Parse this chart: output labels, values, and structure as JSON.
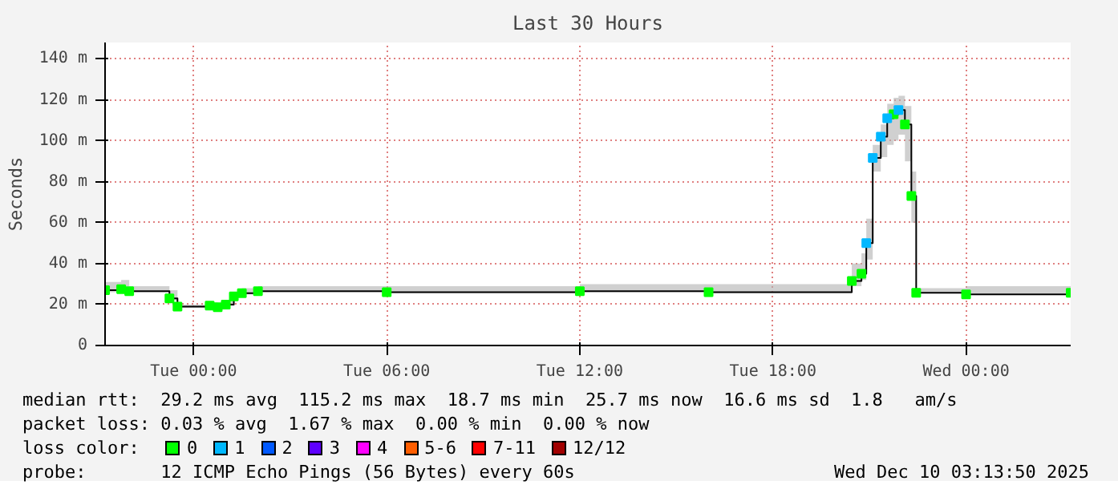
{
  "chart_data": {
    "type": "step",
    "title": "Last 30 Hours",
    "ylabel": "Seconds",
    "x": [
      "2025-12-08T21:15",
      "2025-12-08T21:45",
      "2025-12-08T22:00",
      "2025-12-08T23:15",
      "2025-12-08T23:30",
      "2025-12-09T00:30",
      "2025-12-09T00:45",
      "2025-12-09T01:00",
      "2025-12-09T01:15",
      "2025-12-09T01:30",
      "2025-12-09T02:00",
      "2025-12-09T06:00",
      "2025-12-09T12:00",
      "2025-12-09T16:00",
      "2025-12-09T20:27",
      "2025-12-09T20:45",
      "2025-12-09T20:54",
      "2025-12-09T21:06",
      "2025-12-09T21:21",
      "2025-12-09T21:33",
      "2025-12-09T21:45",
      "2025-12-09T21:54",
      "2025-12-09T22:06",
      "2025-12-09T22:18",
      "2025-12-09T22:27",
      "2025-12-10T00:00",
      "2025-12-10T03:15"
    ],
    "series": [
      {
        "color": "#000000",
        "marker": "none",
        "values": [
          27,
          27.5,
          26.5,
          23,
          19,
          19.5,
          18.7,
          20,
          24,
          25.5,
          26.5,
          26,
          26.5,
          26,
          31.5,
          35,
          50,
          91.6,
          102,
          111,
          113,
          115,
          108,
          73,
          25.7,
          25,
          25.7
        ],
        "lower": [
          26,
          26.5,
          26,
          22,
          18.5,
          19,
          18.5,
          19.5,
          23.5,
          25,
          26,
          25.5,
          26,
          25.5,
          29,
          32,
          42,
          85,
          92,
          98,
          100,
          103,
          90,
          60,
          25.5,
          25,
          25.5
        ],
        "upper": [
          31,
          32,
          29,
          27,
          20,
          21,
          20,
          22,
          26,
          28,
          29,
          29,
          30,
          30,
          40,
          45,
          62,
          98,
          108,
          118,
          121,
          122,
          117,
          85,
          28,
          29,
          28
        ]
      },
      {
        "type": "scatter",
        "name": "0",
        "color": "#00ff00",
        "values": [
          27,
          27.5,
          26.5,
          23,
          19,
          19.5,
          18.7,
          20,
          24,
          25.5,
          26.5,
          26,
          26.5,
          26,
          31.5,
          35,
          null,
          null,
          null,
          null,
          113,
          null,
          108,
          73,
          25.7,
          25,
          25.7
        ]
      },
      {
        "type": "scatter",
        "name": "1",
        "color": "#00b8ff",
        "values": [
          null,
          null,
          null,
          null,
          null,
          null,
          null,
          null,
          null,
          null,
          null,
          null,
          null,
          null,
          null,
          null,
          50,
          91.6,
          102,
          111,
          null,
          115,
          null,
          null,
          null,
          null,
          null
        ]
      },
      {
        "type": "scatter",
        "name": "2",
        "color": "#0059ff",
        "values": [
          null,
          null,
          null,
          null,
          null,
          null,
          null,
          null,
          null,
          null,
          null,
          null,
          null,
          null,
          null,
          null,
          null,
          null,
          null,
          null,
          null,
          null,
          null,
          null,
          null,
          null,
          null
        ]
      },
      {
        "type": "scatter",
        "name": "3",
        "color": "#5e00ff",
        "values": [
          null,
          null,
          null,
          null,
          null,
          null,
          null,
          null,
          null,
          null,
          null,
          null,
          null,
          null,
          null,
          null,
          null,
          null,
          null,
          null,
          null,
          null,
          null,
          null,
          null,
          null,
          null
        ]
      },
      {
        "type": "scatter",
        "name": "4",
        "color": "#ff00ff",
        "values": [
          null,
          null,
          null,
          null,
          null,
          null,
          null,
          null,
          null,
          null,
          null,
          null,
          null,
          null,
          null,
          null,
          null,
          null,
          null,
          null,
          null,
          null,
          null,
          null,
          null,
          null,
          null
        ]
      },
      {
        "type": "scatter",
        "name": "5-6",
        "color": "#ff5e00",
        "values": [
          null,
          null,
          null,
          null,
          null,
          null,
          null,
          null,
          null,
          null,
          null,
          null,
          null,
          null,
          null,
          null,
          null,
          null,
          null,
          null,
          null,
          null,
          null,
          null,
          null,
          null,
          null
        ]
      },
      {
        "type": "scatter",
        "name": "7-11",
        "color": "#ff0000",
        "values": [
          null,
          null,
          null,
          null,
          null,
          null,
          null,
          null,
          null,
          null,
          null,
          null,
          null,
          null,
          null,
          null,
          null,
          null,
          null,
          null,
          null,
          null,
          null,
          null,
          null,
          null,
          null
        ]
      },
      {
        "type": "scatter",
        "name": "12/12",
        "color": "#a10000",
        "values": [
          null,
          null,
          null,
          null,
          null,
          null,
          null,
          null,
          null,
          null,
          null,
          null,
          null,
          null,
          null,
          null,
          null,
          null,
          null,
          null,
          null,
          null,
          null,
          null,
          null,
          null,
          null
        ]
      }
    ],
    "marker": "square",
    "legend": "bottom",
    "legend_title": "loss color:",
    "grid": true,
    "xlim": [
      "2025-12-08T21:15",
      "2025-12-10T03:15"
    ],
    "xticks": [
      {
        "value": "2025-12-09T00:00",
        "label": "Tue 00:00"
      },
      {
        "value": "2025-12-09T06:00",
        "label": "Tue 06:00"
      },
      {
        "value": "2025-12-09T12:00",
        "label": "Tue 12:00"
      },
      {
        "value": "2025-12-09T18:00",
        "label": "Tue 18:00"
      },
      {
        "value": "2025-12-10T00:00",
        "label": "Wed 00:00"
      }
    ],
    "ylim": [
      0,
      148
    ],
    "yticks": [
      0,
      {
        "value": 20,
        "label": "20 m"
      },
      {
        "value": 40,
        "label": "40 m"
      },
      {
        "value": 60,
        "label": "60 m"
      },
      {
        "value": 80,
        "label": "80 m"
      },
      {
        "value": 100,
        "label": "100 m"
      },
      {
        "value": 120,
        "label": "120 m"
      },
      {
        "value": 140,
        "label": "140 m"
      }
    ],
    "annotations": [
      "median rtt:  29.2 ms avg  115.2 ms max  18.7 ms min  25.7 ms now  16.6 ms sd  1.8   am/s",
      "packet loss: 0.03 % avg  1.67 % max  0.00 % min  0.00 % now",
      "probe:       12 ICMP Echo Pings (56 Bytes) every 60s",
      "Wed Dec 10 03:13:50 2025"
    ]
  }
}
